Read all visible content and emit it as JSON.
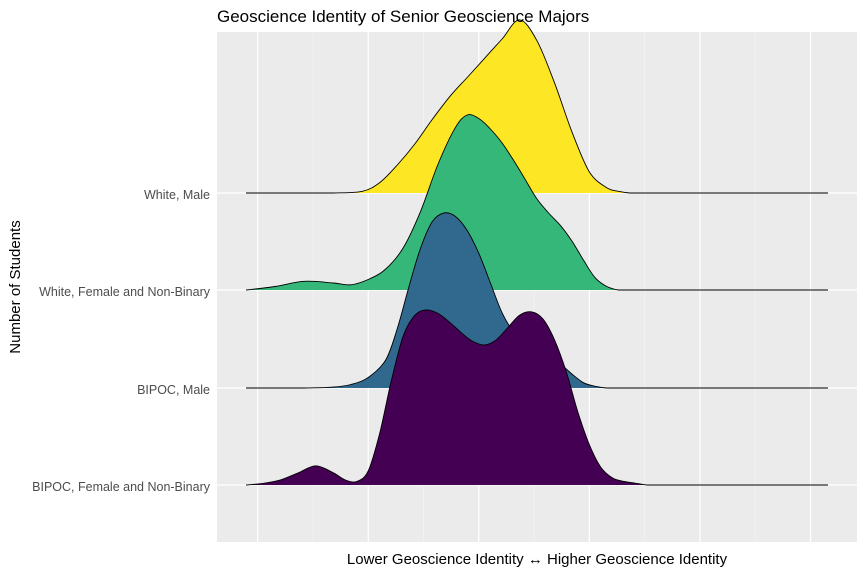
{
  "chart_data": {
    "type": "ridgeline",
    "title": "Geoscience Identity of Senior Geoscience Majors",
    "xlabel": "Lower Geoscience Identity ↔ Higher Geoscience Identity",
    "ylabel": "Number of Students",
    "x_ticks_shown": false,
    "xlim": [
      0,
      1
    ],
    "grid": true,
    "legend": "none",
    "series": [
      {
        "name": "BIPOC, Female and Non-Binary",
        "color": "#440154",
        "x": [
          0.0,
          0.03,
          0.06,
          0.09,
          0.12,
          0.15,
          0.17,
          0.19,
          0.21,
          0.23,
          0.25,
          0.27,
          0.29,
          0.31,
          0.33,
          0.35,
          0.37,
          0.39,
          0.41,
          0.43,
          0.45,
          0.47,
          0.49,
          0.51,
          0.53,
          0.55,
          0.57,
          0.59,
          0.61,
          0.63,
          0.65,
          0.67,
          0.69,
          0.71,
          0.73,
          0.75,
          0.77,
          0.79,
          0.81,
          0.83,
          0.85,
          0.88,
          0.91,
          0.94,
          0.97,
          1.0
        ],
        "values": [
          0.0,
          0.01,
          0.03,
          0.07,
          0.11,
          0.07,
          0.03,
          0.02,
          0.08,
          0.3,
          0.6,
          0.85,
          0.97,
          1.0,
          0.98,
          0.93,
          0.87,
          0.82,
          0.8,
          0.83,
          0.9,
          0.97,
          0.99,
          0.95,
          0.83,
          0.65,
          0.42,
          0.23,
          0.1,
          0.04,
          0.02,
          0.01,
          0.0,
          0.0,
          0.0,
          0.0,
          0.0,
          0.0,
          0.0,
          0.0,
          0.0,
          0.0,
          0.0,
          0.0,
          0.0,
          0.0
        ]
      },
      {
        "name": "BIPOC, Male",
        "color": "#31688E",
        "x": [
          0.0,
          0.05,
          0.1,
          0.15,
          0.18,
          0.21,
          0.24,
          0.26,
          0.28,
          0.3,
          0.32,
          0.34,
          0.36,
          0.38,
          0.4,
          0.42,
          0.44,
          0.46,
          0.48,
          0.5,
          0.52,
          0.54,
          0.56,
          0.58,
          0.6,
          0.62,
          0.64,
          0.66,
          0.68,
          0.7,
          0.72,
          0.75,
          0.8,
          0.85,
          0.9,
          1.0
        ],
        "values": [
          0.0,
          0.0,
          0.0,
          0.005,
          0.02,
          0.06,
          0.16,
          0.34,
          0.58,
          0.8,
          0.95,
          1.0,
          0.98,
          0.9,
          0.77,
          0.6,
          0.43,
          0.32,
          0.27,
          0.24,
          0.2,
          0.14,
          0.08,
          0.03,
          0.01,
          0.0,
          0.0,
          0.0,
          0.0,
          0.0,
          0.0,
          0.0,
          0.0,
          0.0,
          0.0,
          0.0
        ]
      },
      {
        "name": "White, Female and Non-Binary",
        "color": "#35B779",
        "x": [
          0.0,
          0.05,
          0.1,
          0.15,
          0.18,
          0.21,
          0.24,
          0.27,
          0.3,
          0.33,
          0.36,
          0.38,
          0.4,
          0.42,
          0.44,
          0.46,
          0.48,
          0.5,
          0.52,
          0.54,
          0.56,
          0.58,
          0.6,
          0.62,
          0.64,
          0.66,
          0.68,
          0.7,
          0.72,
          0.75,
          0.8,
          0.85,
          0.9,
          1.0
        ],
        "values": [
          0.0,
          0.02,
          0.05,
          0.04,
          0.03,
          0.06,
          0.12,
          0.24,
          0.45,
          0.72,
          0.93,
          1.0,
          0.98,
          0.92,
          0.84,
          0.74,
          0.63,
          0.52,
          0.44,
          0.37,
          0.28,
          0.17,
          0.07,
          0.02,
          0.0,
          0.0,
          0.0,
          0.0,
          0.0,
          0.0,
          0.0,
          0.0,
          0.0,
          0.0
        ]
      },
      {
        "name": "White, Male",
        "color": "#FDE725",
        "x": [
          0.0,
          0.05,
          0.1,
          0.15,
          0.2,
          0.23,
          0.26,
          0.29,
          0.32,
          0.35,
          0.38,
          0.41,
          0.44,
          0.47,
          0.5,
          0.53,
          0.56,
          0.59,
          0.62,
          0.64,
          0.66,
          0.68,
          0.7,
          0.72,
          0.74,
          0.76,
          0.78,
          0.8,
          0.82,
          0.84,
          0.86,
          0.88,
          0.9,
          0.95,
          1.0
        ],
        "values": [
          0.0,
          0.0,
          0.0,
          0.0,
          0.01,
          0.06,
          0.16,
          0.28,
          0.42,
          0.55,
          0.66,
          0.77,
          0.88,
          0.99,
          0.87,
          0.63,
          0.35,
          0.12,
          0.03,
          0.01,
          0.0,
          0.0,
          0.0,
          0.0,
          0.0,
          0.0,
          0.0,
          0.0,
          0.0,
          0.0,
          0.0,
          0.0,
          0.0,
          0.0,
          0.0
        ]
      }
    ]
  }
}
